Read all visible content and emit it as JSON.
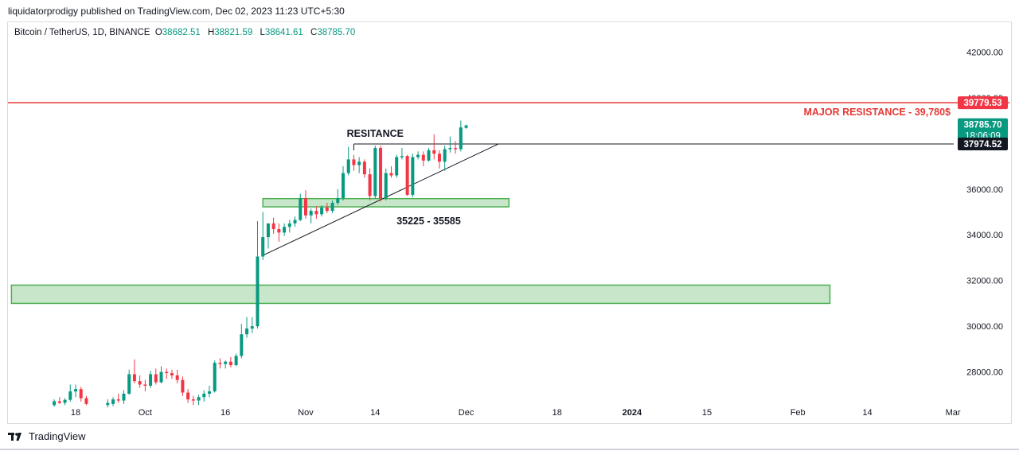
{
  "header": {
    "published_text": "liquidatorprodigy published on TradingView.com, Dec 02, 2023 11:23 UTC+5:30"
  },
  "legend": {
    "symbol": "Bitcoin / TetherUS, 1D, BINANCE",
    "open_label": "O",
    "open_value": "38682.51",
    "high_label": "H",
    "high_value": "38821.59",
    "low_label": "L",
    "low_value": "38641.61",
    "close_label": "C",
    "close_value": "38785.70"
  },
  "branding": {
    "logo_text": "TradingView"
  },
  "colors": {
    "up": "#089981",
    "down": "#f23645",
    "zone_fill": "#c8e6c9",
    "zone_stroke": "#4caf50",
    "resistance_line": "#e53935",
    "annotation_red": "#e53935"
  },
  "chart_data": {
    "type": "candlestick",
    "symbol": "Bitcoin / TetherUS",
    "interval": "1D",
    "exchange": "BINANCE",
    "ylim": [
      26700,
      43300
    ],
    "y_ticks": [
      {
        "value": 42000,
        "label": "42000.00"
      },
      {
        "value": 40000,
        "label": "40000.00"
      },
      {
        "value": 36000,
        "label": "36000.00"
      },
      {
        "value": 34000,
        "label": "34000.00"
      },
      {
        "value": 32000,
        "label": "32000.00"
      },
      {
        "value": 30000,
        "label": "30000.00"
      },
      {
        "value": 28000,
        "label": "28000.00"
      }
    ],
    "x_ticks": [
      {
        "day": 0,
        "label": "18",
        "bold": false
      },
      {
        "day": 13,
        "label": "Oct",
        "bold": false
      },
      {
        "day": 28,
        "label": "16",
        "bold": false
      },
      {
        "day": 43,
        "label": "Nov",
        "bold": false
      },
      {
        "day": 56,
        "label": "14",
        "bold": false
      },
      {
        "day": 73,
        "label": "Dec",
        "bold": false
      },
      {
        "day": 90,
        "label": "18",
        "bold": false
      },
      {
        "day": 104,
        "label": "2024",
        "bold": true
      },
      {
        "day": 118,
        "label": "15",
        "bold": false
      },
      {
        "day": 135,
        "label": "Feb",
        "bold": false
      },
      {
        "day": 148,
        "label": "14",
        "bold": false
      },
      {
        "day": 164,
        "label": "Mar",
        "bold": false
      }
    ],
    "candles": [
      {
        "day": -4,
        "o": 26550,
        "h": 26800,
        "l": 26480,
        "c": 26720
      },
      {
        "day": -3,
        "o": 26720,
        "h": 26900,
        "l": 26600,
        "c": 26650
      },
      {
        "day": -2,
        "o": 26650,
        "h": 26850,
        "l": 26550,
        "c": 26780
      },
      {
        "day": -1,
        "o": 26780,
        "h": 27450,
        "l": 26700,
        "c": 27150
      },
      {
        "day": 0,
        "o": 27150,
        "h": 27450,
        "l": 26900,
        "c": 27250
      },
      {
        "day": 1,
        "o": 27250,
        "h": 27350,
        "l": 26700,
        "c": 26850
      },
      {
        "day": 2,
        "o": 26850,
        "h": 26950,
        "l": 26550,
        "c": 26600
      },
      {
        "day": 6,
        "o": 26550,
        "h": 26800,
        "l": 26450,
        "c": 26650
      },
      {
        "day": 7,
        "o": 26600,
        "h": 26900,
        "l": 26500,
        "c": 26800
      },
      {
        "day": 8,
        "o": 26800,
        "h": 27050,
        "l": 26650,
        "c": 26750
      },
      {
        "day": 9,
        "o": 26750,
        "h": 27200,
        "l": 26600,
        "c": 27050
      },
      {
        "day": 10,
        "o": 27050,
        "h": 28100,
        "l": 27000,
        "c": 27900
      },
      {
        "day": 11,
        "o": 27900,
        "h": 28550,
        "l": 27500,
        "c": 27600
      },
      {
        "day": 12,
        "o": 27600,
        "h": 27850,
        "l": 27300,
        "c": 27450
      },
      {
        "day": 13,
        "o": 27450,
        "h": 27650,
        "l": 27150,
        "c": 27400
      },
      {
        "day": 14,
        "o": 27400,
        "h": 28050,
        "l": 27300,
        "c": 27900
      },
      {
        "day": 15,
        "o": 27900,
        "h": 28150,
        "l": 27450,
        "c": 27550
      },
      {
        "day": 16,
        "o": 27550,
        "h": 28250,
        "l": 27500,
        "c": 28000
      },
      {
        "day": 17,
        "o": 28000,
        "h": 28150,
        "l": 27700,
        "c": 27950
      },
      {
        "day": 18,
        "o": 27950,
        "h": 28100,
        "l": 27700,
        "c": 27850
      },
      {
        "day": 19,
        "o": 27850,
        "h": 28100,
        "l": 27500,
        "c": 27650
      },
      {
        "day": 20,
        "o": 27650,
        "h": 27800,
        "l": 26950,
        "c": 27100
      },
      {
        "day": 21,
        "o": 27100,
        "h": 27250,
        "l": 26650,
        "c": 26800
      },
      {
        "day": 22,
        "o": 26800,
        "h": 26950,
        "l": 26550,
        "c": 26750
      },
      {
        "day": 23,
        "o": 26750,
        "h": 27000,
        "l": 26550,
        "c": 26900
      },
      {
        "day": 24,
        "o": 26900,
        "h": 27200,
        "l": 26700,
        "c": 27050
      },
      {
        "day": 25,
        "o": 27050,
        "h": 27400,
        "l": 26900,
        "c": 27150
      },
      {
        "day": 26,
        "o": 27150,
        "h": 28500,
        "l": 27100,
        "c": 28400
      },
      {
        "day": 27,
        "o": 28400,
        "h": 28600,
        "l": 28150,
        "c": 28350
      },
      {
        "day": 28,
        "o": 28350,
        "h": 28500,
        "l": 28150,
        "c": 28450
      },
      {
        "day": 29,
        "o": 28450,
        "h": 28650,
        "l": 28200,
        "c": 28300
      },
      {
        "day": 30,
        "o": 28300,
        "h": 28800,
        "l": 28250,
        "c": 28700
      },
      {
        "day": 31,
        "o": 28700,
        "h": 30100,
        "l": 28600,
        "c": 29650
      },
      {
        "day": 32,
        "o": 29650,
        "h": 30400,
        "l": 29500,
        "c": 29900
      },
      {
        "day": 33,
        "o": 29900,
        "h": 30400,
        "l": 29700,
        "c": 30000
      },
      {
        "day": 34,
        "o": 30000,
        "h": 34600,
        "l": 29900,
        "c": 33050
      },
      {
        "day": 35,
        "o": 33050,
        "h": 35000,
        "l": 32900,
        "c": 33900
      },
      {
        "day": 36,
        "o": 33900,
        "h": 34500,
        "l": 33400,
        "c": 34500
      },
      {
        "day": 37,
        "o": 34500,
        "h": 34750,
        "l": 34050,
        "c": 34250
      },
      {
        "day": 38,
        "o": 34250,
        "h": 34500,
        "l": 33700,
        "c": 34100
      },
      {
        "day": 39,
        "o": 34100,
        "h": 34500,
        "l": 33950,
        "c": 34350
      },
      {
        "day": 40,
        "o": 34350,
        "h": 34650,
        "l": 34100,
        "c": 34500
      },
      {
        "day": 41,
        "o": 34500,
        "h": 34800,
        "l": 34350,
        "c": 34650
      },
      {
        "day": 42,
        "o": 34650,
        "h": 35800,
        "l": 34600,
        "c": 35600
      },
      {
        "day": 43,
        "o": 35600,
        "h": 35950,
        "l": 34700,
        "c": 34850
      },
      {
        "day": 44,
        "o": 34850,
        "h": 35150,
        "l": 34500,
        "c": 35050
      },
      {
        "day": 45,
        "o": 35050,
        "h": 35250,
        "l": 34700,
        "c": 34900
      },
      {
        "day": 46,
        "o": 34900,
        "h": 35300,
        "l": 34800,
        "c": 35200
      },
      {
        "day": 47,
        "o": 35200,
        "h": 35400,
        "l": 34950,
        "c": 35050
      },
      {
        "day": 48,
        "o": 35050,
        "h": 35500,
        "l": 34950,
        "c": 35400
      },
      {
        "day": 49,
        "o": 35400,
        "h": 36000,
        "l": 35300,
        "c": 35600
      },
      {
        "day": 50,
        "o": 35600,
        "h": 37000,
        "l": 35500,
        "c": 36700
      },
      {
        "day": 51,
        "o": 36700,
        "h": 37850,
        "l": 36600,
        "c": 37300
      },
      {
        "day": 52,
        "o": 37300,
        "h": 37500,
        "l": 36800,
        "c": 37050
      },
      {
        "day": 53,
        "o": 37050,
        "h": 37400,
        "l": 36700,
        "c": 37200
      },
      {
        "day": 54,
        "o": 37200,
        "h": 37300,
        "l": 36500,
        "c": 36650
      },
      {
        "day": 55,
        "o": 36650,
        "h": 36900,
        "l": 35500,
        "c": 35700
      },
      {
        "day": 56,
        "o": 35700,
        "h": 37900,
        "l": 35600,
        "c": 37800
      },
      {
        "day": 57,
        "o": 37800,
        "h": 37900,
        "l": 35450,
        "c": 35600
      },
      {
        "day": 58,
        "o": 35600,
        "h": 36900,
        "l": 35500,
        "c": 36700
      },
      {
        "day": 59,
        "o": 36700,
        "h": 37000,
        "l": 36500,
        "c": 36600
      },
      {
        "day": 60,
        "o": 36600,
        "h": 37500,
        "l": 36500,
        "c": 37400
      },
      {
        "day": 61,
        "o": 37400,
        "h": 37800,
        "l": 37300,
        "c": 37450
      },
      {
        "day": 62,
        "o": 37450,
        "h": 37500,
        "l": 35700,
        "c": 35750
      },
      {
        "day": 63,
        "o": 35750,
        "h": 37550,
        "l": 35650,
        "c": 37400
      },
      {
        "day": 64,
        "o": 37400,
        "h": 37650,
        "l": 37300,
        "c": 37500
      },
      {
        "day": 65,
        "o": 37500,
        "h": 37650,
        "l": 37000,
        "c": 37250
      },
      {
        "day": 66,
        "o": 37250,
        "h": 37800,
        "l": 37200,
        "c": 37700
      },
      {
        "day": 67,
        "o": 37700,
        "h": 38400,
        "l": 37300,
        "c": 37550
      },
      {
        "day": 68,
        "o": 37550,
        "h": 37700,
        "l": 36900,
        "c": 37200
      },
      {
        "day": 69,
        "o": 37200,
        "h": 37900,
        "l": 36800,
        "c": 37750
      },
      {
        "day": 70,
        "o": 37750,
        "h": 38300,
        "l": 37600,
        "c": 37800
      },
      {
        "day": 71,
        "o": 37800,
        "h": 38100,
        "l": 37550,
        "c": 37750
      },
      {
        "day": 72,
        "o": 37750,
        "h": 39000,
        "l": 37650,
        "c": 38700
      },
      {
        "day": 73,
        "o": 38682.51,
        "h": 38821.59,
        "l": 38641.61,
        "c": 38785.7
      }
    ],
    "zones": [
      {
        "y0": 35225,
        "y1": 35585,
        "day_start": 35,
        "day_end": 81
      },
      {
        "y0": 31000,
        "y1": 31800,
        "day_start": -12,
        "day_end": 141
      }
    ],
    "lines": [
      {
        "type": "horizontal_full",
        "y": 39779.53,
        "color": "#e53935"
      },
      {
        "type": "horizontal_from",
        "y": 37974.52,
        "day_start": 52
      },
      {
        "type": "trend",
        "d0": 35,
        "y0": 33100,
        "d1": 79,
        "y1": 37974.52
      }
    ],
    "price_badges": [
      {
        "value": 39779.53,
        "label": "39779.53",
        "bg": "#f23645"
      },
      {
        "value": 38785.7,
        "label": "38785.70",
        "sub": "18:06:09",
        "bg": "#089981"
      },
      {
        "value": 37974.52,
        "label": "37974.52",
        "bg": "#131722"
      }
    ],
    "annotations": [
      {
        "text": "MAJOR RESISTANCE - 39,780$",
        "value": 39779.53,
        "color": "#e53935"
      },
      {
        "text": "RESITANCE",
        "value": 37974.52,
        "day": 56
      },
      {
        "text": "35225 - 35585",
        "value": 35225,
        "day": 66
      }
    ]
  }
}
